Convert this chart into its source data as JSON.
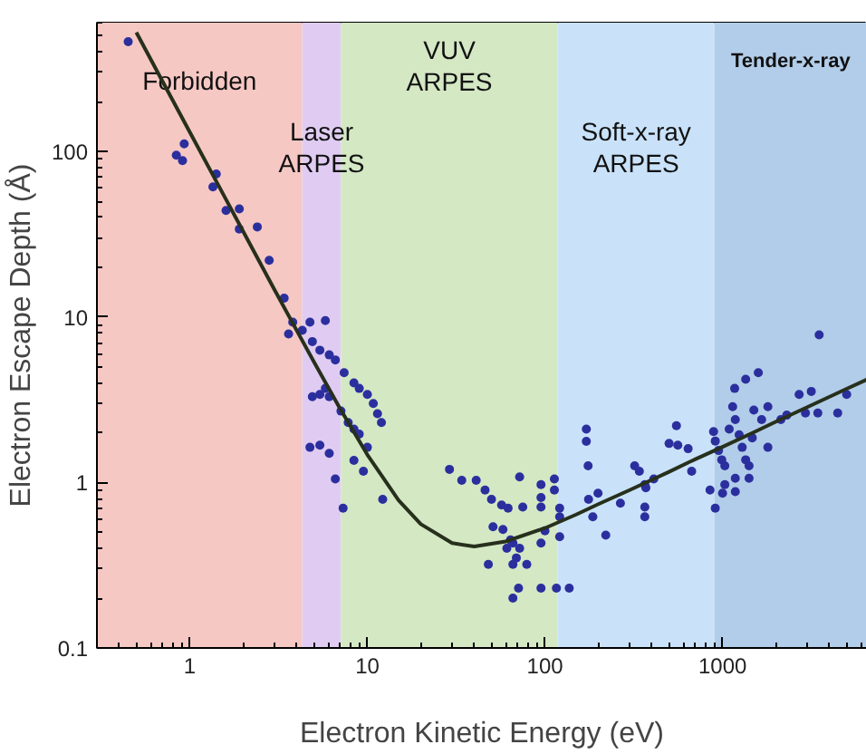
{
  "chart_data": {
    "type": "scatter",
    "xlabel": "Electron Kinetic Energy (eV)",
    "ylabel": "Electron Escape Depth (Å)",
    "log": "xy",
    "grid": false,
    "marker": "circle",
    "xlim": [
      0.3,
      6500
    ],
    "ylim": [
      0.1,
      600
    ],
    "xticks": [
      1,
      10,
      100,
      1000
    ],
    "yticks": [
      0.1,
      1,
      10,
      100
    ],
    "bands": [
      {
        "axis": "x",
        "from": 0.3,
        "to": 4.3,
        "label": "Forbidden",
        "color": "#f6c8c4"
      },
      {
        "axis": "x",
        "from": 4.3,
        "to": 7.1,
        "label": "Laser\nARPES",
        "color": "#e0ccf2"
      },
      {
        "axis": "x",
        "from": 7.1,
        "to": 118,
        "label": "VUV\nARPES",
        "color": "#d4e8c4"
      },
      {
        "axis": "x",
        "from": 118,
        "to": 900,
        "label": "Soft-x-ray\nARPES",
        "color": "#c9e2fa"
      },
      {
        "axis": "x",
        "from": 900,
        "to": 6500,
        "label": "Tender-x-ray",
        "color": "#b2cde9"
      }
    ],
    "series": [
      {
        "color": "#2b2f9e",
        "x": [
          0.45,
          0.84,
          0.91,
          0.93,
          1.41,
          1.35,
          1.6,
          1.9,
          1.9,
          2.4,
          2.8,
          3.4,
          3.8,
          3.6,
          4.3,
          4.75,
          5.8,
          4.9,
          5.4,
          6.1,
          6.6,
          7.4,
          8.4,
          9.0,
          10,
          10.8,
          11.4,
          12,
          4.9,
          5.4,
          5.8,
          6.1,
          7.1,
          7.8,
          8.4,
          9,
          10,
          4.75,
          5.4,
          6.1,
          6.6,
          7.3,
          8.4,
          9.5,
          12.2,
          29,
          34,
          41,
          46,
          50,
          57,
          62,
          75,
          72,
          51,
          58,
          64,
          66,
          72,
          61,
          69,
          79,
          66,
          48,
          71,
          66,
          95,
          95,
          95,
          113,
          113,
          95,
          100,
          95,
          116,
          137,
          121,
          121,
          121,
          171,
          171,
          175,
          186,
          220,
          176,
          199,
          266,
          320,
          340,
          365,
          370,
          365,
          365,
          410,
          500,
          560,
          640,
          550,
          670,
          850,
          1000,
          1180,
          910,
          890,
          910,
          950,
          990,
          1030,
          1090,
          1140,
          1180,
          1240,
          1290,
          1350,
          1410,
          1170,
          1350,
          1590,
          1500,
          1660,
          1800,
          1470,
          1410,
          1180,
          1800,
          1030,
          2130,
          2300,
          2700,
          3160,
          2930,
          3440,
          4450,
          5000,
          3500
        ],
        "values": [
          460,
          95,
          88,
          111,
          73,
          61,
          44,
          45,
          34,
          35,
          22,
          13,
          9.3,
          7.9,
          8.3,
          9.3,
          9.5,
          7.1,
          6.3,
          5.9,
          5.5,
          4.6,
          4.0,
          3.7,
          3.4,
          3.0,
          2.6,
          2.3,
          3.3,
          3.4,
          3.7,
          3.3,
          2.7,
          2.3,
          2.1,
          1.96,
          1.63,
          1.63,
          1.68,
          1.5,
          1.05,
          0.7,
          1.36,
          1.17,
          0.79,
          1.2,
          1.03,
          1.03,
          0.9,
          0.79,
          0.73,
          0.7,
          0.71,
          1.08,
          0.54,
          0.52,
          0.45,
          0.43,
          0.4,
          0.4,
          0.35,
          0.32,
          0.32,
          0.32,
          0.23,
          0.2,
          0.97,
          0.81,
          0.71,
          1.05,
          0.9,
          0.43,
          0.51,
          0.23,
          0.23,
          0.23,
          0.7,
          0.62,
          0.47,
          2.1,
          1.77,
          1.26,
          0.62,
          0.48,
          0.79,
          0.86,
          0.75,
          1.26,
          1.17,
          0.97,
          0.93,
          0.71,
          0.62,
          1.05,
          1.72,
          1.68,
          1.6,
          2.2,
          1.17,
          0.9,
          0.86,
          0.88,
          0.7,
          2.03,
          1.78,
          1.56,
          1.37,
          1.26,
          2.1,
          2.87,
          2.4,
          1.94,
          1.63,
          1.37,
          1.26,
          3.7,
          4.2,
          4.6,
          2.74,
          2.4,
          2.87,
          1.86,
          1.06,
          1.06,
          1.63,
          0.97,
          2.4,
          2.55,
          3.4,
          3.55,
          2.63,
          2.63,
          2.63,
          3.4,
          7.8
        ]
      },
      {
        "type": "line",
        "marker": "none",
        "color": "#27301c",
        "x": [
          0.5,
          0.7,
          1,
          1.5,
          2,
          3,
          4,
          5,
          7,
          10,
          15,
          20,
          30,
          40,
          60,
          100,
          150,
          200,
          300,
          500,
          700,
          1000,
          1500,
          2000,
          3000,
          5000,
          6500
        ],
        "values": [
          524,
          267,
          131,
          58.3,
          32.8,
          14.6,
          8.29,
          5.36,
          2.81,
          1.47,
          0.78,
          0.56,
          0.43,
          0.41,
          0.44,
          0.53,
          0.64,
          0.74,
          0.9,
          1.16,
          1.38,
          1.64,
          2.01,
          2.33,
          2.85,
          3.68,
          4.19
        ]
      }
    ]
  }
}
